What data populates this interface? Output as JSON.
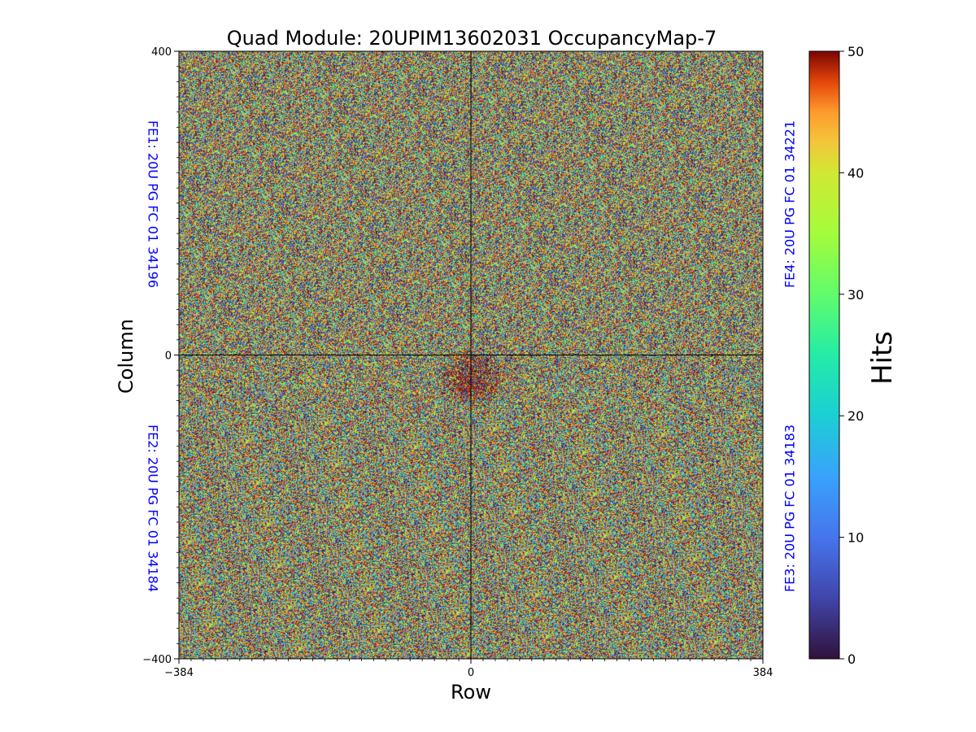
{
  "chart_data": {
    "type": "heatmap",
    "title": "Quad Module: 20UPIM13602031 OccupancyMap-7",
    "xlabel": "Row",
    "ylabel": "Column",
    "xlim": [
      -384,
      384
    ],
    "ylim": [
      -400,
      400
    ],
    "xticks": [
      {
        "value": -384,
        "label": "−384"
      },
      {
        "value": 0,
        "label": "0"
      },
      {
        "value": 384,
        "label": "384"
      }
    ],
    "yticks": [
      {
        "value": 400,
        "label": "400"
      },
      {
        "value": 0,
        "label": "0"
      },
      {
        "value": -400,
        "label": "−400"
      }
    ],
    "quadrant_dividers": {
      "x": 0,
      "y": 0
    },
    "colorbar": {
      "label": "Hits",
      "min": 0,
      "max": 50,
      "colormap": "turbo",
      "ticks": [
        0,
        10,
        20,
        30,
        40,
        50
      ]
    },
    "noise": "uniform random occupancy 0-50 hits across all pixels",
    "hotspot": {
      "x": 0,
      "y": -30,
      "description": "dark-red concentration of high-hit pixels just below center"
    },
    "chip_labels": [
      {
        "name": "fe1",
        "text": "FE1: 20U PG FC 01 34196",
        "quadrant": "top-left"
      },
      {
        "name": "fe2",
        "text": "FE2: 20U PG FC 01 34184",
        "quadrant": "bottom-left"
      },
      {
        "name": "fe3",
        "text": "FE3: 20U PG FC 01 34183",
        "quadrant": "bottom-right"
      },
      {
        "name": "fe4",
        "text": "FE4: 20U PG FC 01 34221",
        "quadrant": "top-right"
      }
    ],
    "label_color": "#0000ff"
  }
}
